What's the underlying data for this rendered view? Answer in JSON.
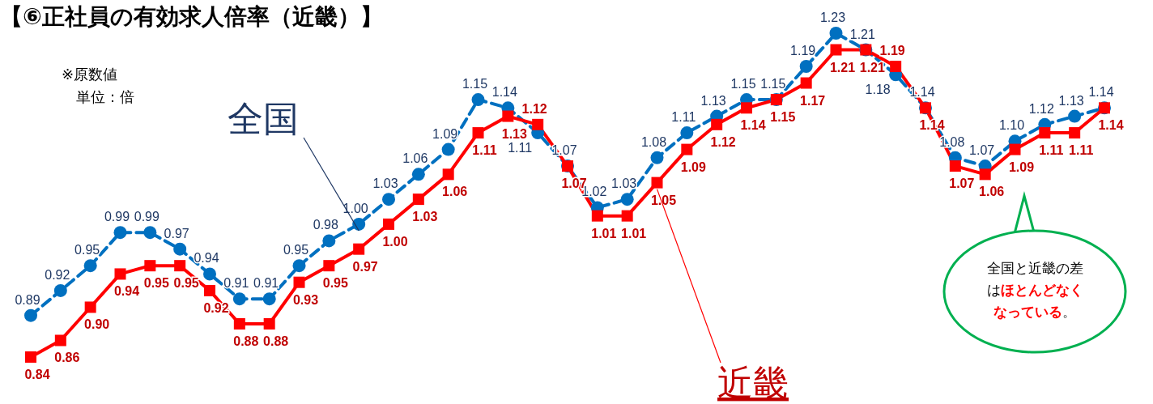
{
  "chart_data": {
    "type": "line",
    "title": "【⑥正社員の有効求人倍率（近畿）】",
    "annotations": [
      "※原数値",
      "単位：倍",
      "全国と近畿の差は**ほとんどなくなっている**。"
    ],
    "categories": [
      null,
      null,
      null,
      null,
      null,
      null,
      null,
      null,
      null,
      null,
      null,
      null,
      null,
      null,
      null,
      null,
      null,
      null,
      null,
      null,
      null,
      null,
      null,
      null,
      null,
      null,
      null,
      null,
      null,
      null,
      null,
      null,
      null,
      null,
      null,
      null,
      null
    ],
    "series": [
      {
        "name": "全国",
        "color": "#0070c0",
        "line_style": "dashed",
        "marker": "circle",
        "values": [
          0.89,
          0.92,
          0.95,
          0.99,
          0.99,
          0.97,
          0.94,
          0.91,
          0.91,
          0.95,
          0.98,
          1.0,
          1.03,
          1.06,
          1.09,
          1.15,
          1.14,
          1.11,
          1.07,
          1.02,
          1.03,
          1.08,
          1.11,
          1.13,
          1.15,
          1.15,
          1.19,
          1.23,
          1.21,
          1.18,
          1.14,
          1.08,
          1.07,
          1.1,
          1.12,
          1.13,
          1.14
        ],
        "value_labels": [
          "0.89",
          "0.92",
          "0.95",
          "0.99",
          "0.99",
          "0.97",
          "0.94",
          "0.91",
          "0.91",
          "0.95",
          "0.98",
          "1.00",
          "1.03",
          "1.06",
          "1.09",
          "1.15",
          "1.14",
          "1.11",
          "1.07",
          "1.02",
          "1.03",
          "1.08",
          "1.11",
          "1.13",
          "1.15",
          "1.15",
          "1.19",
          "1.23",
          "1.21",
          "1.18",
          "1.14",
          "1.08",
          "1.07",
          "1.10",
          "1.12",
          "1.13",
          "1.14"
        ]
      },
      {
        "name": "近畿",
        "color": "#ff0000",
        "line_style": "solid",
        "marker": "square",
        "values": [
          0.84,
          0.86,
          0.9,
          0.94,
          0.95,
          0.95,
          0.92,
          0.88,
          0.88,
          0.93,
          0.95,
          0.97,
          1.0,
          1.03,
          1.06,
          1.11,
          1.13,
          1.12,
          1.07,
          1.01,
          1.01,
          1.05,
          1.09,
          1.12,
          1.14,
          1.15,
          1.17,
          1.21,
          1.21,
          1.19,
          1.14,
          1.07,
          1.06,
          1.09,
          1.11,
          1.11,
          1.14
        ],
        "value_labels": [
          "0.84",
          "0.86",
          "0.90",
          "0.94",
          "0.95",
          "0.95",
          "0.92",
          "0.88",
          "0.88",
          "0.93",
          "0.95",
          "0.97",
          "1.00",
          "1.03",
          "1.06",
          "1.11",
          "1.13",
          "1.12",
          "1.07",
          "1.01",
          "1.01",
          "1.05",
          "1.09",
          "1.12",
          "1.14",
          "1.15",
          "1.17",
          "1.21",
          "1.21",
          "1.19",
          "1.14",
          "1.07",
          "1.06",
          "1.09",
          "1.11",
          "1.11",
          "1.14"
        ]
      }
    ]
  }
}
